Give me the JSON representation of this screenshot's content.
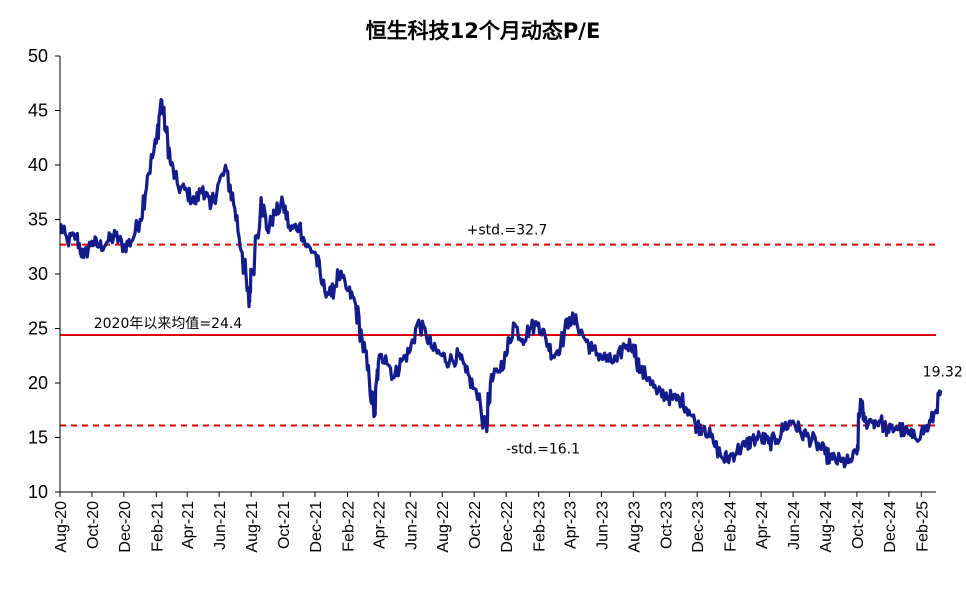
{
  "chart_data": {
    "type": "line",
    "title": "恒生科技12个月动态P/E",
    "xlabel": "",
    "ylabel": "",
    "ylim": [
      10,
      50
    ],
    "yticks": [
      10,
      15,
      20,
      25,
      30,
      35,
      40,
      45,
      50
    ],
    "x_tick_labels": [
      "Aug-20",
      "Oct-20",
      "Dec-20",
      "Feb-21",
      "Apr-21",
      "Jun-21",
      "Aug-21",
      "Oct-21",
      "Dec-21",
      "Feb-22",
      "Apr-22",
      "Jun-22",
      "Aug-22",
      "Oct-22",
      "Dec-22",
      "Feb-23",
      "Apr-23",
      "Jun-23",
      "Aug-23",
      "Oct-23",
      "Dec-23",
      "Feb-24",
      "Apr-24",
      "Jun-24",
      "Aug-24",
      "Oct-24",
      "Dec-24",
      "Feb-25"
    ],
    "x_range": [
      "2020-08",
      "2025-03"
    ],
    "grid": false,
    "reference_lines": [
      {
        "label": "+std.=32.7",
        "value": 32.7,
        "color": "#e00000",
        "style": "dashed"
      },
      {
        "label": "2020年以来均值=24.4",
        "value": 24.4,
        "color": "#e00000",
        "style": "solid"
      },
      {
        "label": "-std.=16.1",
        "value": 16.1,
        "color": "#e00000",
        "style": "dashed"
      }
    ],
    "last_value_label": "19.32",
    "series": [
      {
        "color": "#141c8c",
        "x": [
          "2020-08-01",
          "2020-08-15",
          "2020-09-01",
          "2020-09-15",
          "2020-10-01",
          "2020-10-15",
          "2020-11-01",
          "2020-11-15",
          "2020-12-01",
          "2020-12-15",
          "2021-01-01",
          "2021-01-15",
          "2021-02-01",
          "2021-02-10",
          "2021-02-20",
          "2021-03-01",
          "2021-03-15",
          "2021-04-01",
          "2021-04-15",
          "2021-05-01",
          "2021-05-15",
          "2021-06-01",
          "2021-06-15",
          "2021-07-01",
          "2021-07-15",
          "2021-07-28",
          "2021-08-01",
          "2021-08-20",
          "2021-09-01",
          "2021-09-15",
          "2021-10-01",
          "2021-10-15",
          "2021-11-01",
          "2021-11-15",
          "2021-12-01",
          "2021-12-15",
          "2022-01-01",
          "2022-01-15",
          "2022-02-01",
          "2022-02-15",
          "2022-03-01",
          "2022-03-15",
          "2022-03-25",
          "2022-04-01",
          "2022-04-15",
          "2022-05-01",
          "2022-05-15",
          "2022-06-01",
          "2022-06-15",
          "2022-07-01",
          "2022-07-15",
          "2022-08-01",
          "2022-08-15",
          "2022-09-01",
          "2022-09-15",
          "2022-10-01",
          "2022-10-24",
          "2022-11-01",
          "2022-11-15",
          "2022-12-01",
          "2022-12-15",
          "2023-01-01",
          "2023-01-15",
          "2023-02-01",
          "2023-02-15",
          "2023-03-01",
          "2023-03-15",
          "2023-04-01",
          "2023-04-15",
          "2023-05-01",
          "2023-05-15",
          "2023-06-01",
          "2023-06-15",
          "2023-07-01",
          "2023-07-15",
          "2023-08-01",
          "2023-08-15",
          "2023-09-01",
          "2023-09-15",
          "2023-10-01",
          "2023-10-15",
          "2023-11-01",
          "2023-11-15",
          "2023-12-01",
          "2023-12-15",
          "2024-01-01",
          "2024-01-20",
          "2024-02-01",
          "2024-02-15",
          "2024-03-01",
          "2024-03-15",
          "2024-04-01",
          "2024-04-15",
          "2024-05-01",
          "2024-05-15",
          "2024-06-01",
          "2024-06-15",
          "2024-07-01",
          "2024-07-15",
          "2024-08-01",
          "2024-08-15",
          "2024-09-01",
          "2024-09-15",
          "2024-10-01",
          "2024-10-08",
          "2024-10-15",
          "2024-11-01",
          "2024-11-15",
          "2024-12-01",
          "2024-12-15",
          "2025-01-01",
          "2025-01-15",
          "2025-02-01",
          "2025-02-15",
          "2025-03-01",
          "2025-03-10"
        ],
        "values": [
          34.5,
          33.0,
          33.5,
          31.5,
          33.0,
          32.5,
          33.0,
          33.5,
          32.5,
          33.0,
          35.0,
          39.0,
          42.0,
          46.0,
          43.0,
          40.0,
          38.0,
          37.5,
          36.5,
          38.0,
          36.0,
          38.5,
          39.5,
          36.0,
          32.0,
          27.0,
          30.0,
          37.0,
          34.0,
          35.5,
          36.5,
          34.0,
          34.5,
          32.5,
          32.0,
          29.0,
          28.0,
          30.0,
          28.5,
          27.5,
          24.0,
          20.0,
          17.0,
          22.0,
          22.5,
          20.5,
          22.0,
          23.0,
          25.5,
          24.5,
          23.0,
          22.5,
          22.0,
          22.5,
          21.0,
          19.5,
          16.0,
          20.0,
          21.0,
          22.5,
          25.5,
          24.0,
          25.0,
          25.5,
          24.0,
          22.5,
          23.5,
          26.0,
          25.5,
          24.0,
          23.0,
          22.5,
          22.0,
          22.0,
          23.5,
          23.5,
          21.0,
          20.5,
          19.0,
          19.0,
          18.5,
          18.5,
          17.5,
          16.0,
          16.0,
          14.5,
          13.0,
          13.2,
          13.8,
          14.2,
          14.8,
          15.0,
          14.5,
          14.8,
          16.0,
          16.5,
          15.5,
          15.0,
          14.5,
          13.5,
          13.0,
          12.8,
          12.7,
          13.5,
          18.5,
          16.5,
          16.5,
          16.5,
          15.5,
          16.0,
          15.5,
          15.0,
          15.5,
          16.0,
          17.5,
          19.32
        ]
      }
    ]
  }
}
